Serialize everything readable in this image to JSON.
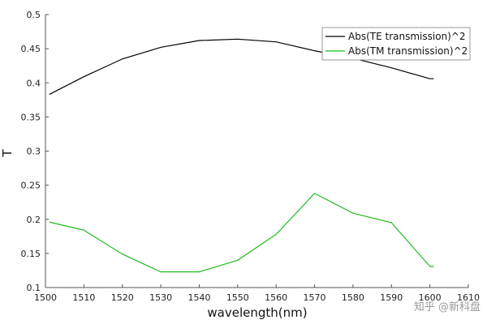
{
  "chart_data": {
    "type": "line",
    "xlabel": "wavelength(nm)",
    "ylabel": "T",
    "xlim": [
      1500,
      1610
    ],
    "ylim": [
      0.1,
      0.5
    ],
    "x_ticks": [
      1500,
      1510,
      1520,
      1530,
      1540,
      1550,
      1560,
      1570,
      1580,
      1590,
      1600,
      1610
    ],
    "y_ticks": [
      0.1,
      0.15,
      0.2,
      0.25,
      0.3,
      0.35,
      0.4,
      0.45,
      0.5
    ],
    "y_tick_labels": [
      "0.1",
      "0.15",
      "0.2",
      "0.25",
      "0.3",
      "0.35",
      "0.4",
      "0.45",
      "0.5"
    ],
    "grid": false,
    "legend_position": "top-right",
    "series": [
      {
        "name": "Abs(TE transmission)^2",
        "color": "#000000",
        "x": [
          1501,
          1510,
          1520,
          1530,
          1540,
          1550,
          1560,
          1570,
          1580,
          1590,
          1600,
          1601
        ],
        "y": [
          0.383,
          0.409,
          0.435,
          0.452,
          0.462,
          0.464,
          0.46,
          0.447,
          0.436,
          0.422,
          0.406,
          0.406
        ]
      },
      {
        "name": "Abs(TM transmission)^2",
        "color": "#22bb22",
        "x": [
          1501,
          1510,
          1520,
          1530,
          1540,
          1550,
          1560,
          1570,
          1580,
          1590,
          1600,
          1601
        ],
        "y": [
          0.196,
          0.184,
          0.149,
          0.123,
          0.123,
          0.14,
          0.178,
          0.238,
          0.209,
          0.195,
          0.131,
          0.131
        ]
      }
    ]
  },
  "watermark": "知乎 @新科盘"
}
